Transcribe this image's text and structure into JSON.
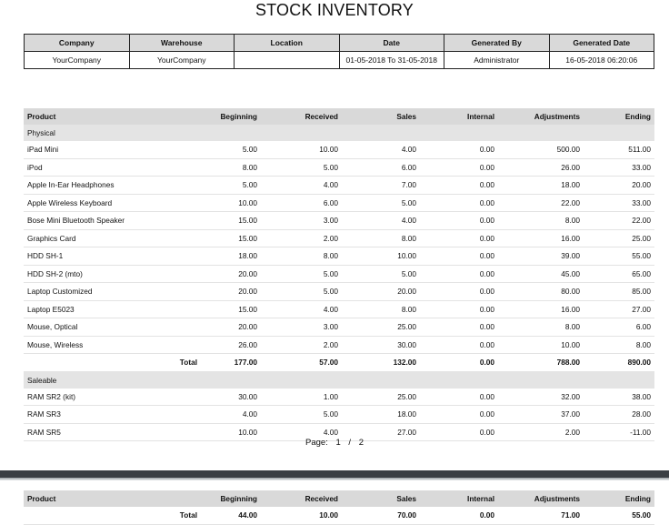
{
  "report": {
    "title": "STOCK INVENTORY"
  },
  "meta": {
    "headers": [
      "Company",
      "Warehouse",
      "Location",
      "Date",
      "Generated By",
      "Generated Date"
    ],
    "values": [
      "YourCompany",
      "YourCompany",
      "",
      "01-05-2018 To 31-05-2018",
      "Administrator",
      "16-05-2018 06:20:06"
    ]
  },
  "columns": [
    "Product",
    "Beginning",
    "Received",
    "Sales",
    "Internal",
    "Adjustments",
    "Ending"
  ],
  "groups": [
    {
      "name": "Physical",
      "rows": [
        [
          "iPad Mini",
          "5.00",
          "10.00",
          "4.00",
          "0.00",
          "500.00",
          "511.00"
        ],
        [
          "iPod",
          "8.00",
          "5.00",
          "6.00",
          "0.00",
          "26.00",
          "33.00"
        ],
        [
          "Apple In-Ear Headphones",
          "5.00",
          "4.00",
          "7.00",
          "0.00",
          "18.00",
          "20.00"
        ],
        [
          "Apple Wireless Keyboard",
          "10.00",
          "6.00",
          "5.00",
          "0.00",
          "22.00",
          "33.00"
        ],
        [
          "Bose Mini Bluetooth Speaker",
          "15.00",
          "3.00",
          "4.00",
          "0.00",
          "8.00",
          "22.00"
        ],
        [
          "Graphics Card",
          "15.00",
          "2.00",
          "8.00",
          "0.00",
          "16.00",
          "25.00"
        ],
        [
          "HDD SH-1",
          "18.00",
          "8.00",
          "10.00",
          "0.00",
          "39.00",
          "55.00"
        ],
        [
          "HDD SH-2 (mto)",
          "20.00",
          "5.00",
          "5.00",
          "0.00",
          "45.00",
          "65.00"
        ],
        [
          "Laptop Customized",
          "20.00",
          "5.00",
          "20.00",
          "0.00",
          "80.00",
          "85.00"
        ],
        [
          "Laptop E5023",
          "15.00",
          "4.00",
          "8.00",
          "0.00",
          "16.00",
          "27.00"
        ],
        [
          "Mouse, Optical",
          "20.00",
          "3.00",
          "25.00",
          "0.00",
          "8.00",
          "6.00"
        ],
        [
          "Mouse, Wireless",
          "26.00",
          "2.00",
          "30.00",
          "0.00",
          "10.00",
          "8.00"
        ]
      ],
      "total": [
        "Total",
        "177.00",
        "57.00",
        "132.00",
        "0.00",
        "788.00",
        "890.00"
      ]
    },
    {
      "name": "Saleable",
      "rows": [
        [
          "RAM SR2 (kit)",
          "30.00",
          "1.00",
          "25.00",
          "0.00",
          "32.00",
          "38.00"
        ],
        [
          "RAM SR3",
          "4.00",
          "5.00",
          "18.00",
          "0.00",
          "37.00",
          "28.00"
        ],
        [
          "RAM SR5",
          "10.00",
          "4.00",
          "27.00",
          "0.00",
          "2.00",
          "-11.00"
        ]
      ]
    }
  ],
  "pager": {
    "label": "Page:",
    "current": "1",
    "sep": "/",
    "total": "2"
  },
  "page2": {
    "total": [
      "Total",
      "44.00",
      "10.00",
      "70.00",
      "0.00",
      "71.00",
      "55.00"
    ]
  }
}
